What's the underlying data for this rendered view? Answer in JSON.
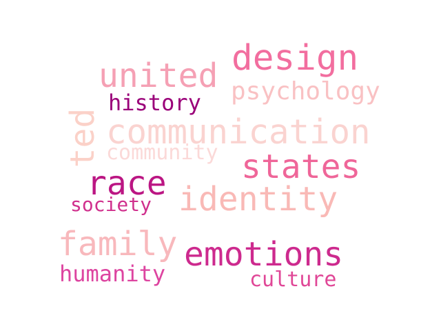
{
  "word_cloud": {
    "words": [
      {
        "key": "communication",
        "text": "communication",
        "color": "#fad3d0"
      },
      {
        "key": "design",
        "text": "design",
        "color": "#f26e9f"
      },
      {
        "key": "identity",
        "text": "identity",
        "color": "#f9b9b6"
      },
      {
        "key": "emotions",
        "text": "emotions",
        "color": "#cd2a8e"
      },
      {
        "key": "united",
        "text": "united",
        "color": "#f5a0b4"
      },
      {
        "key": "states",
        "text": "states",
        "color": "#ef6699"
      },
      {
        "key": "family",
        "text": "family",
        "color": "#f8b8bc"
      },
      {
        "key": "race",
        "text": "race",
        "color": "#bb1683"
      },
      {
        "key": "psychology",
        "text": "psychology",
        "color": "#f9c1c3"
      },
      {
        "key": "history",
        "text": "history",
        "color": "#9a0179"
      },
      {
        "key": "society",
        "text": "society",
        "color": "#d0308d"
      },
      {
        "key": "humanity",
        "text": "humanity",
        "color": "#dd44a0"
      },
      {
        "key": "culture",
        "text": "culture",
        "color": "#e04797"
      },
      {
        "key": "community",
        "text": "community",
        "color": "#fbd9d8"
      },
      {
        "key": "ted",
        "text": "ted",
        "color": "#fbd1c8"
      }
    ]
  }
}
